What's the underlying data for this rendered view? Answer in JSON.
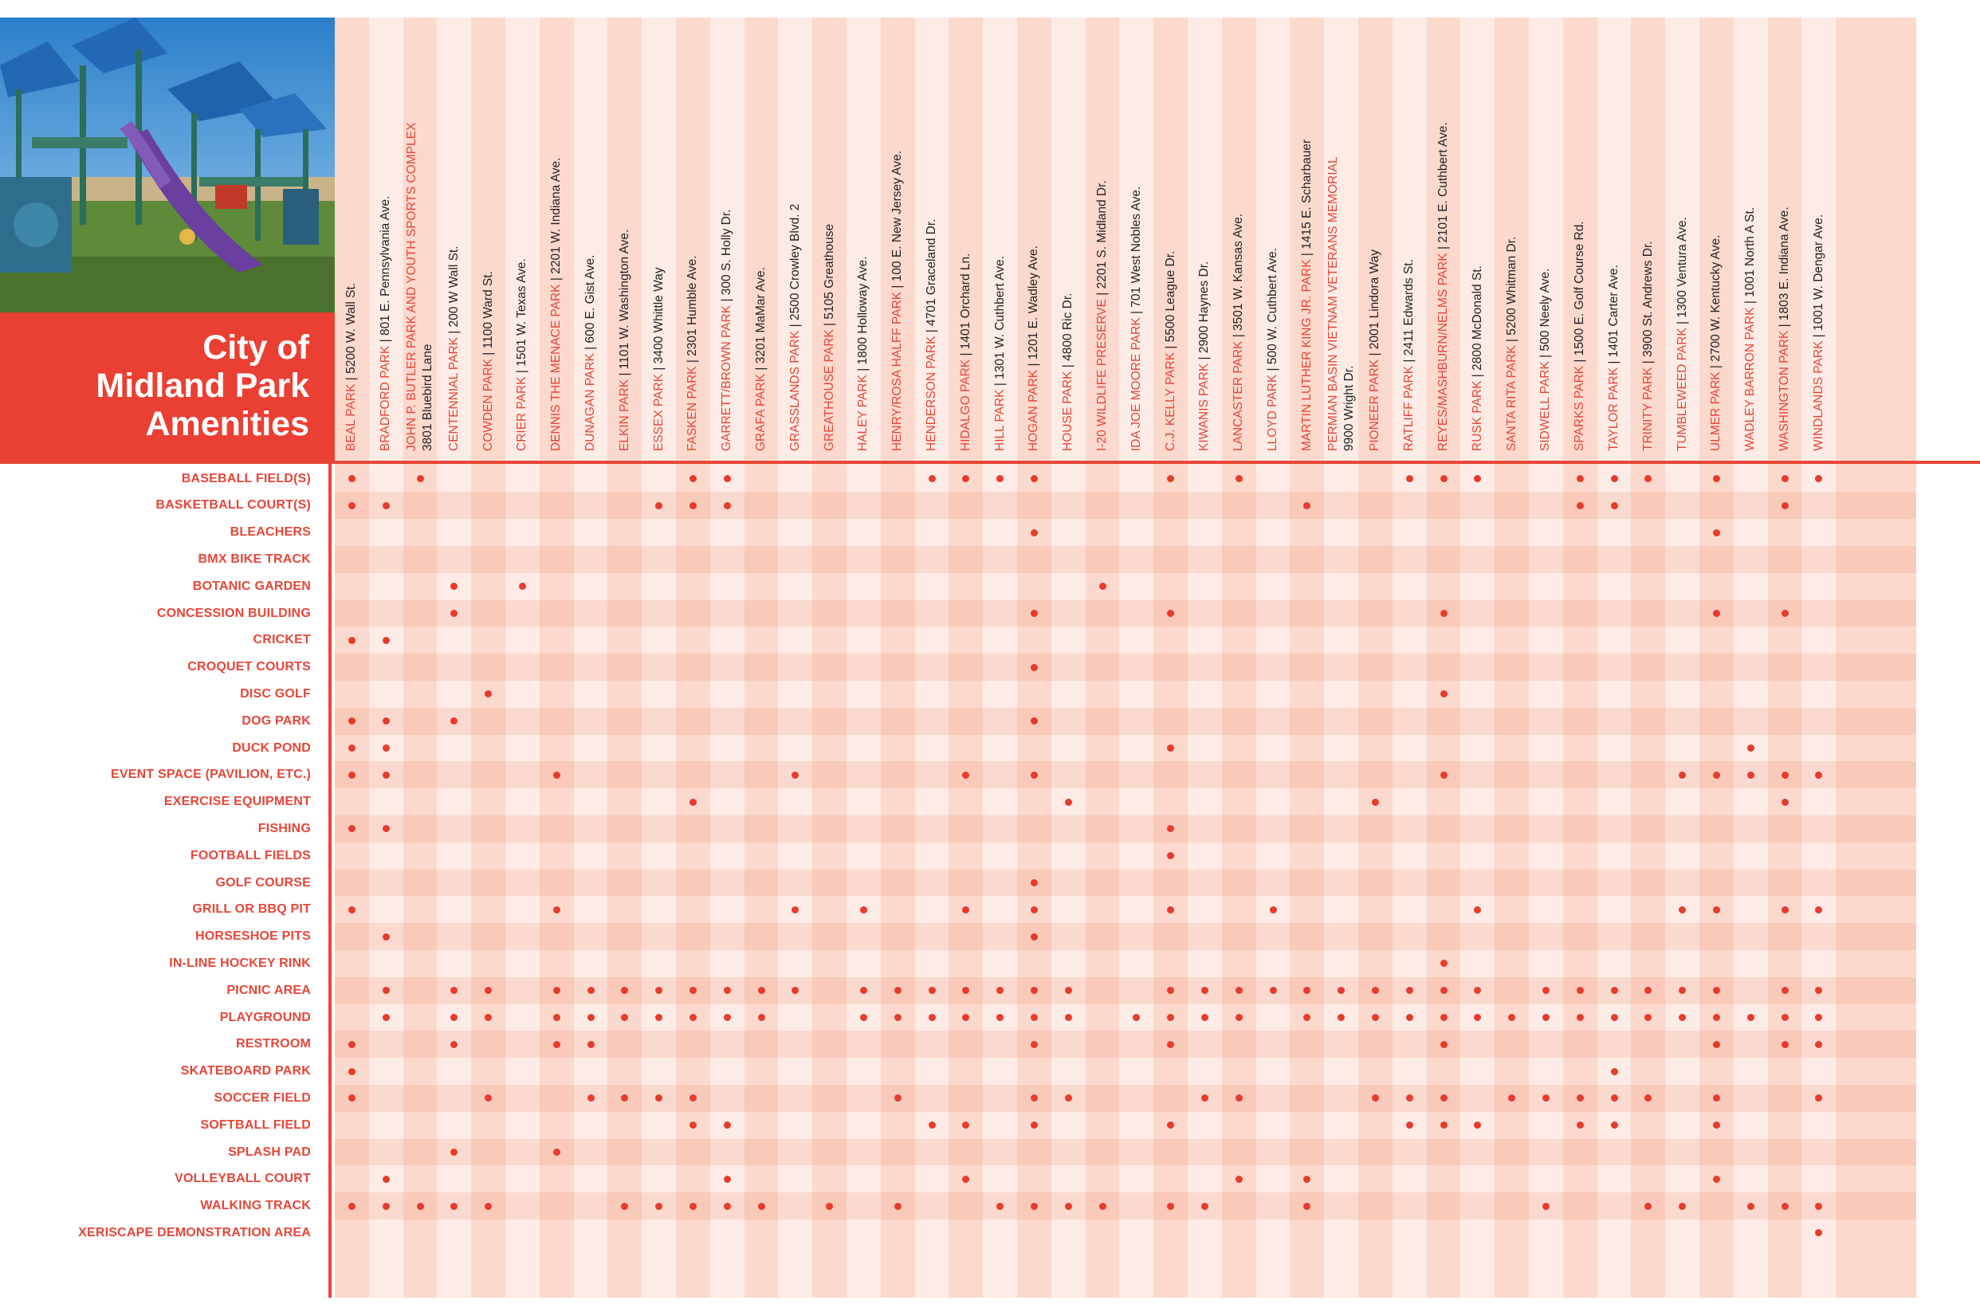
{
  "title": "City of\nMidland Park\nAmenities",
  "photo": {
    "icon": "playground-photo"
  },
  "colors": {
    "accent": "#e64638",
    "band_dark": "#fcd9cd",
    "band_light": "#fdece5",
    "dot": "#e63b2e"
  },
  "parks": [
    {
      "name": "BEAL PARK",
      "address": "5200 W. Wall St."
    },
    {
      "name": "BRADFORD PARK",
      "address": "801 E. Pennsylvania Ave."
    },
    {
      "name": "JOHN P. BUTLER PARK AND YOUTH SPORTS COMPLEX",
      "address": "",
      "address2": "3801 Bluebird Lane"
    },
    {
      "name": "CENTENNIAL PARK",
      "address": "200 W Wall St."
    },
    {
      "name": "COWDEN PARK",
      "address": "1100 Ward St."
    },
    {
      "name": "CRIER PARK",
      "address": "1501 W. Texas Ave."
    },
    {
      "name": "DENNIS THE MENACE PARK",
      "address": "2201 W. Indiana Ave."
    },
    {
      "name": "DUNAGAN PARK",
      "address": "600 E. Gist Ave."
    },
    {
      "name": "ELKIN PARK",
      "address": "1101 W. Washington Ave."
    },
    {
      "name": "ESSEX PARK",
      "address": "3400 Whittle Way"
    },
    {
      "name": "FASKEN PARK",
      "address": "2301 Humble Ave."
    },
    {
      "name": "GARRETT/BROWN PARK",
      "address": "300 S. Holly Dr."
    },
    {
      "name": "GRAFA PARK",
      "address": "3201 MaMar Ave."
    },
    {
      "name": "GRASSLANDS PARK",
      "address": "2500 Crowley Blvd. 2"
    },
    {
      "name": "GREATHOUSE PARK",
      "address": "5105 Greathouse"
    },
    {
      "name": "HALEY PARK",
      "address": "1800 Holloway Ave."
    },
    {
      "name": "HENRY/ROSA HALFF PARK",
      "address": "100 E. New Jersey Ave."
    },
    {
      "name": "HENDERSON PARK",
      "address": "4701 Graceland Dr."
    },
    {
      "name": "HIDALGO PARK",
      "address": "1401 Orchard Ln."
    },
    {
      "name": "HILL PARK",
      "address": "1301 W. Cuthbert Ave."
    },
    {
      "name": "HOGAN PARK",
      "address": "1201 E. Wadley Ave."
    },
    {
      "name": "HOUSE PARK",
      "address": "4800 Ric Dr."
    },
    {
      "name": "I-20 WILDLIFE PRESERVE",
      "address": "2201 S. Midland Dr."
    },
    {
      "name": "IDA JOE MOORE PARK",
      "address": "701 West Nobles Ave."
    },
    {
      "name": "C.J. KELLY PARK",
      "address": "5500 League Dr."
    },
    {
      "name": "KIWANIS PARK",
      "address": "2900 Haynes Dr."
    },
    {
      "name": "LANCASTER PARK",
      "address": "3501 W. Kansas Ave."
    },
    {
      "name": "LLOYD PARK",
      "address": "500 W. Cuthbert Ave."
    },
    {
      "name": "MARTIN LUTHER KING JR. PARK",
      "address": "1415 E. Scharbauer"
    },
    {
      "name": "PERMIAN BASIN VIETNAM VETERANS MEMORIAL",
      "address": "",
      "address2": "9900 Wright Dr."
    },
    {
      "name": "PIONEER PARK",
      "address": "2001 Lindora Way"
    },
    {
      "name": "RATLIFF PARK",
      "address": "2411 Edwards St."
    },
    {
      "name": "REYES/MASHBURN/NELMS PARK",
      "address": "2101 E. Cuthbert Ave."
    },
    {
      "name": "RUSK PARK",
      "address": "2800 McDonald St."
    },
    {
      "name": "SANTA RITA PARK",
      "address": "5200 Whitman Dr."
    },
    {
      "name": "SIDWELL PARK",
      "address": "500 Neely Ave."
    },
    {
      "name": "SPARKS PARK",
      "address": "1500 E. Golf Course Rd."
    },
    {
      "name": "TAYLOR PARK",
      "address": "1401 Carter Ave."
    },
    {
      "name": "TRINITY PARK",
      "address": "3900 St. Andrews Dr."
    },
    {
      "name": "TUMBLEWEED PARK",
      "address": "1300 Ventura Ave."
    },
    {
      "name": "ULMER PARK",
      "address": "2700 W. Kentucky Ave."
    },
    {
      "name": "WADLEY BARRON PARK",
      "address": "1001 North A St."
    },
    {
      "name": "WASHINGTON PARK",
      "address": "1803 E. Indiana Ave."
    },
    {
      "name": "WINDLANDS PARK",
      "address": "1001 W. Dengar Ave."
    }
  ],
  "amenities": [
    {
      "label": "BASEBALL FIELD(S)",
      "parks": [
        0,
        2,
        10,
        11,
        17,
        18,
        19,
        20,
        24,
        26,
        31,
        32,
        33,
        36,
        37,
        38,
        40,
        42,
        43
      ]
    },
    {
      "label": "BASKETBALL COURT(S)",
      "parks": [
        0,
        1,
        9,
        10,
        11,
        28,
        36,
        37,
        42
      ]
    },
    {
      "label": "BLEACHERS",
      "parks": [
        20,
        40
      ]
    },
    {
      "label": "BMX BIKE TRACK",
      "parks": []
    },
    {
      "label": "BOTANIC GARDEN",
      "parks": [
        3,
        5,
        22
      ]
    },
    {
      "label": "CONCESSION BUILDING",
      "parks": [
        3,
        20,
        24,
        32,
        40,
        42
      ]
    },
    {
      "label": "CRICKET",
      "parks": [
        0,
        1
      ]
    },
    {
      "label": "CROQUET COURTS",
      "parks": [
        20
      ]
    },
    {
      "label": "DISC GOLF",
      "parks": [
        4,
        32
      ]
    },
    {
      "label": "DOG PARK",
      "parks": [
        0,
        1,
        3,
        20
      ]
    },
    {
      "label": "DUCK POND",
      "parks": [
        0,
        1,
        24,
        41
      ]
    },
    {
      "label": "EVENT SPACE (PAVILION, ETC.)",
      "parks": [
        0,
        1,
        6,
        13,
        18,
        20,
        32,
        39,
        40,
        41,
        42,
        43
      ]
    },
    {
      "label": "EXERCISE EQUIPMENT",
      "parks": [
        10,
        21,
        30,
        42
      ]
    },
    {
      "label": "FISHING",
      "parks": [
        0,
        1,
        24
      ]
    },
    {
      "label": "FOOTBALL FIELDS",
      "parks": [
        24
      ]
    },
    {
      "label": "GOLF COURSE",
      "parks": [
        20
      ]
    },
    {
      "label": "GRILL OR BBQ PIT",
      "parks": [
        0,
        6,
        13,
        15,
        18,
        20,
        24,
        27,
        33,
        39,
        40,
        42,
        43
      ]
    },
    {
      "label": "HORSESHOE PITS",
      "parks": [
        1,
        20
      ]
    },
    {
      "label": "IN-LINE HOCKEY RINK",
      "parks": [
        32
      ]
    },
    {
      "label": "PICNIC AREA",
      "parks": [
        1,
        3,
        4,
        6,
        7,
        8,
        9,
        10,
        11,
        12,
        13,
        15,
        16,
        17,
        18,
        19,
        20,
        21,
        24,
        25,
        26,
        27,
        28,
        29,
        30,
        31,
        32,
        33,
        35,
        36,
        37,
        38,
        39,
        40,
        42,
        43
      ]
    },
    {
      "label": "PLAYGROUND",
      "parks": [
        1,
        3,
        4,
        6,
        7,
        8,
        9,
        10,
        11,
        12,
        15,
        16,
        17,
        18,
        19,
        20,
        21,
        23,
        24,
        25,
        26,
        28,
        29,
        30,
        31,
        32,
        33,
        34,
        35,
        36,
        37,
        38,
        39,
        40,
        41,
        42,
        43
      ]
    },
    {
      "label": "RESTROOM",
      "parks": [
        0,
        3,
        6,
        7,
        20,
        24,
        32,
        40,
        42,
        43
      ]
    },
    {
      "label": "SKATEBOARD PARK",
      "parks": [
        0,
        37
      ]
    },
    {
      "label": "SOCCER FIELD",
      "parks": [
        0,
        4,
        7,
        8,
        9,
        10,
        16,
        20,
        21,
        25,
        26,
        30,
        31,
        32,
        34,
        35,
        36,
        37,
        38,
        40,
        43
      ]
    },
    {
      "label": "SOFTBALL FIELD",
      "parks": [
        10,
        11,
        17,
        18,
        20,
        24,
        31,
        32,
        33,
        36,
        37,
        40
      ]
    },
    {
      "label": "SPLASH PAD",
      "parks": [
        3,
        6
      ]
    },
    {
      "label": "VOLLEYBALL COURT",
      "parks": [
        1,
        11,
        18,
        26,
        28,
        40
      ]
    },
    {
      "label": "WALKING TRACK",
      "parks": [
        0,
        1,
        2,
        3,
        4,
        8,
        9,
        10,
        11,
        12,
        14,
        16,
        19,
        20,
        21,
        22,
        24,
        25,
        28,
        35,
        38,
        39,
        41,
        42,
        43
      ]
    },
    {
      "label": "XERISCAPE DEMONSTRATION AREA",
      "parks": [
        43
      ]
    }
  ]
}
